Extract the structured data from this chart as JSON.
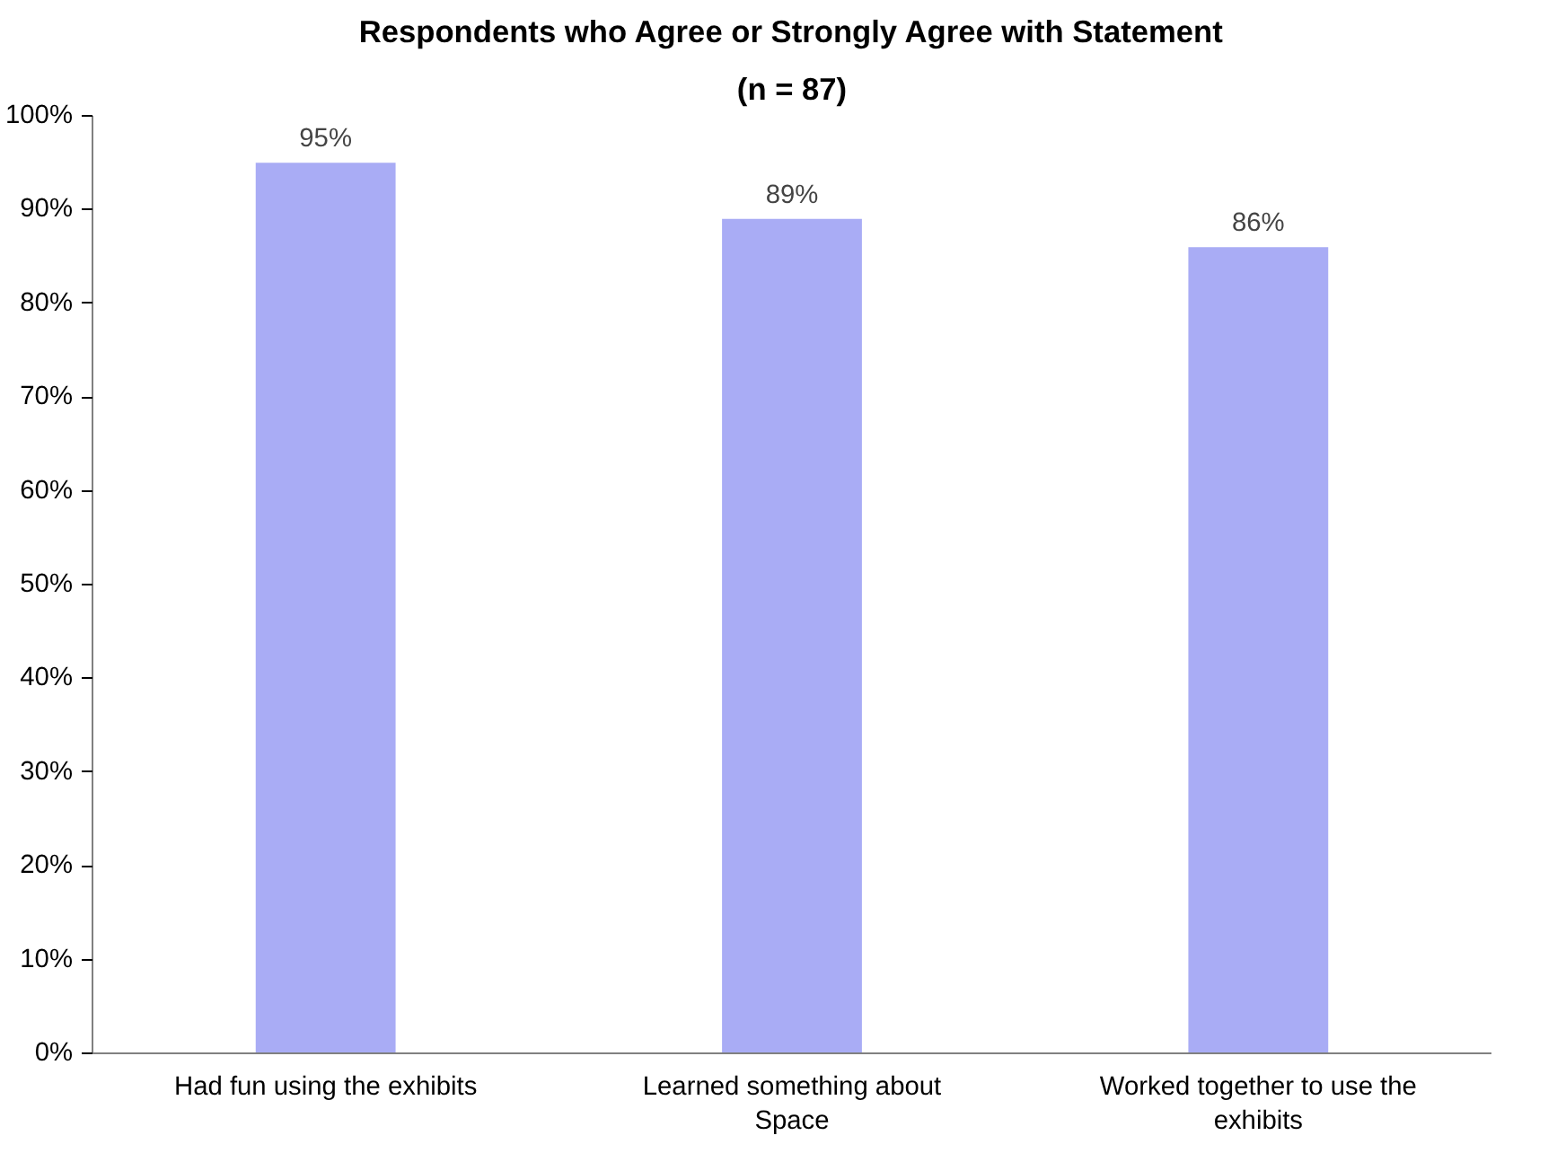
{
  "chart_data": {
    "type": "bar",
    "title": "Respondents who Agree or Strongly Agree with Statement",
    "subtitle": "(n = 87)",
    "categories": [
      "Had fun using the exhibits",
      "Learned something about Space",
      "Worked together to use the exhibits"
    ],
    "values": [
      95,
      89,
      86
    ],
    "value_labels": [
      "95%",
      "89%",
      "86%"
    ],
    "color": "#a9acf5",
    "ylim": [
      0,
      100
    ],
    "yticks": [
      {
        "value": 0,
        "label": "0%"
      },
      {
        "value": 10,
        "label": "10%"
      },
      {
        "value": 20,
        "label": "20%"
      },
      {
        "value": 30,
        "label": "30%"
      },
      {
        "value": 40,
        "label": "40%"
      },
      {
        "value": 50,
        "label": "50%"
      },
      {
        "value": 60,
        "label": "60%"
      },
      {
        "value": 70,
        "label": "70%"
      },
      {
        "value": 80,
        "label": "80%"
      },
      {
        "value": 90,
        "label": "90%"
      },
      {
        "value": 100,
        "label": "100%"
      }
    ],
    "grid": false
  }
}
